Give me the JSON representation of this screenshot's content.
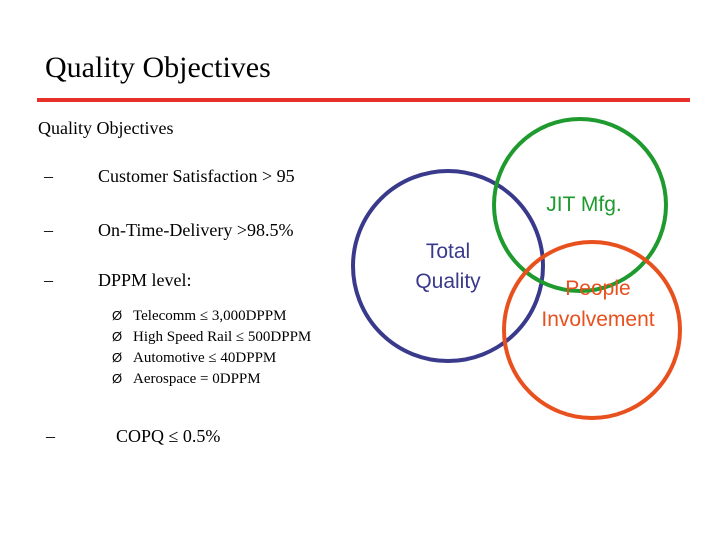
{
  "header": {
    "title": "Quality Objectives"
  },
  "body": {
    "heading": "Quality Objectives",
    "bullets": [
      {
        "marker": "–",
        "text": "Customer Satisfaction > 95"
      },
      {
        "marker": "–",
        "text": "On-Time-Delivery  >98.5%"
      },
      {
        "marker": "–",
        "text": "DPPM level:"
      }
    ],
    "sub_bullets": [
      {
        "marker": "Ø",
        "text": "Telecomm ≤ 3,000DPPM"
      },
      {
        "marker": "Ø",
        "text": "High Speed Rail ≤ 500DPPM"
      },
      {
        "marker": "Ø",
        "text": "Automotive ≤ 40DPPM"
      },
      {
        "marker": "Ø",
        "text": "Aerospace  = 0DPPM"
      }
    ],
    "last_bullet": {
      "marker": "–",
      "text": "COPQ ≤ 0.5%"
    }
  },
  "diagram": {
    "circles": [
      {
        "lines": [
          "Total",
          "Quality"
        ]
      },
      {
        "lines": [
          "JIT Mfg."
        ]
      },
      {
        "lines": [
          "People",
          "Involvement"
        ]
      }
    ]
  }
}
